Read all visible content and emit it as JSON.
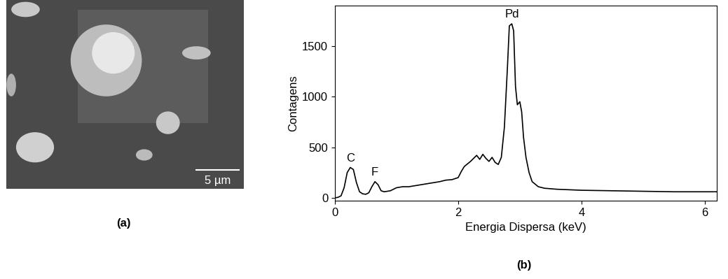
{
  "chart_data": [
    {
      "type": "image",
      "panel_label": "(a)",
      "annotations": [
        {
          "text": "5 µm"
        }
      ]
    },
    {
      "type": "line",
      "panel_label": "(b)",
      "x_label": "Energia Dispersa (keV)",
      "y_label": "Contagens",
      "x": [
        0.0,
        0.05,
        0.1,
        0.15,
        0.2,
        0.25,
        0.3,
        0.35,
        0.4,
        0.45,
        0.5,
        0.55,
        0.6,
        0.65,
        0.7,
        0.75,
        0.8,
        0.9,
        1.0,
        1.1,
        1.2,
        1.3,
        1.4,
        1.5,
        1.6,
        1.7,
        1.8,
        1.9,
        2.0,
        2.05,
        2.1,
        2.2,
        2.3,
        2.35,
        2.4,
        2.45,
        2.5,
        2.55,
        2.6,
        2.65,
        2.7,
        2.75,
        2.8,
        2.83,
        2.87,
        2.9,
        2.93,
        2.96,
        3.0,
        3.03,
        3.06,
        3.1,
        3.15,
        3.2,
        3.3,
        3.4,
        3.6,
        3.8,
        4.0,
        4.5,
        5.0,
        5.5,
        6.0,
        6.2
      ],
      "values": [
        0,
        5,
        20,
        100,
        250,
        300,
        280,
        150,
        60,
        40,
        35,
        50,
        110,
        160,
        130,
        70,
        60,
        70,
        100,
        110,
        110,
        120,
        130,
        140,
        150,
        160,
        175,
        180,
        200,
        260,
        310,
        360,
        420,
        380,
        430,
        390,
        360,
        400,
        350,
        330,
        400,
        700,
        1300,
        1700,
        1720,
        1650,
        1100,
        920,
        950,
        850,
        600,
        400,
        250,
        160,
        110,
        95,
        85,
        80,
        75,
        70,
        65,
        60,
        60,
        60
      ],
      "color": "#000000",
      "xlim": [
        0,
        6.2
      ],
      "xticks": [
        0,
        2,
        4,
        6
      ],
      "ylim": [
        -30,
        1900
      ],
      "yticks": [
        0,
        500,
        1000,
        1500
      ],
      "grid": false,
      "annotations": [
        {
          "text": "C",
          "x": 0.25
        },
        {
          "text": "F",
          "x": 0.65
        },
        {
          "text": "Pd",
          "x": 2.87
        }
      ]
    }
  ]
}
